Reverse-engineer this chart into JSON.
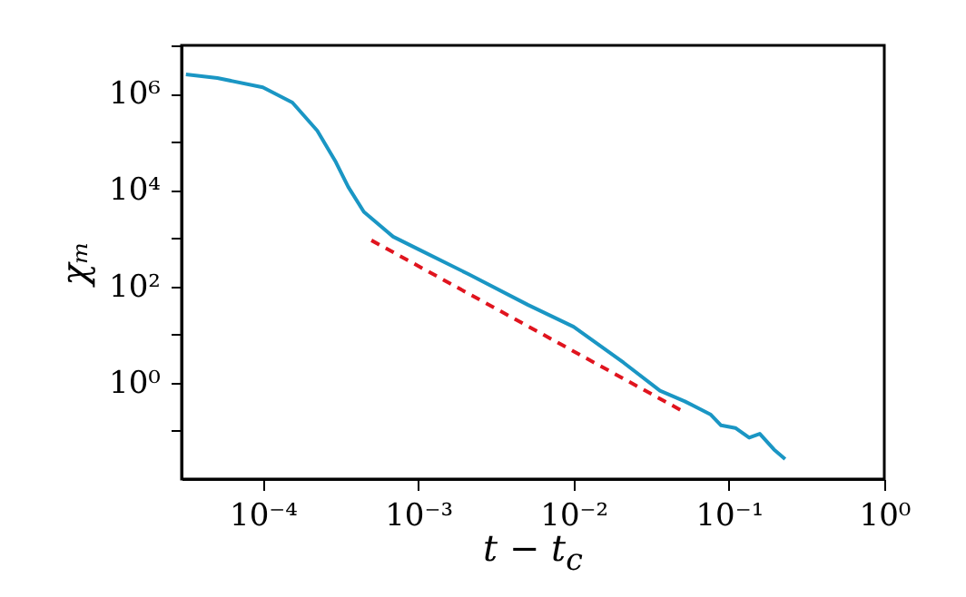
{
  "chart_data": {
    "type": "line",
    "xlabel": "t − t$_{c}$",
    "ylabel": "χₘ",
    "log": "xy",
    "grid": false,
    "xlim": [
      3e-05,
      1
    ],
    "ylim": [
      0.01,
      10000000.0
    ],
    "xticks": [
      {
        "value": 0.0001,
        "label": "10⁻⁴"
      },
      {
        "value": 0.001,
        "label": "10⁻³"
      },
      {
        "value": 0.01,
        "label": "10⁻²"
      },
      {
        "value": 0.1,
        "label": "10⁻¹"
      },
      {
        "value": 1,
        "label": "10⁰"
      }
    ],
    "yticks": [
      {
        "value": 0.1,
        "label": null
      },
      {
        "value": 1,
        "label": "10⁰"
      },
      {
        "value": 10,
        "label": null
      },
      {
        "value": 100,
        "label": "10²"
      },
      {
        "value": 1000,
        "label": null
      },
      {
        "value": 10000,
        "label": "10⁴"
      },
      {
        "value": 100000,
        "label": null
      },
      {
        "value": 1000000,
        "label": "10⁶"
      },
      {
        "value": 10000000,
        "label": null
      }
    ],
    "series": [
      {
        "color": "#1a96c4",
        "line_style": "solid",
        "x": [
          3.2e-05,
          5.1e-05,
          0.0001,
          0.000155,
          0.000224,
          0.000295,
          0.000355,
          0.000447,
          0.00069,
          0.001,
          0.0021,
          0.0051,
          0.01,
          0.021,
          0.036,
          0.052,
          0.076,
          0.089,
          0.11,
          0.135,
          0.158,
          0.195,
          0.23
        ],
        "values": [
          2500000.0,
          2100000.0,
          1350000.0,
          650000.0,
          170000.0,
          38000.0,
          11500.0,
          3500.0,
          1070.0,
          590,
          180,
          41,
          14.5,
          2.6,
          0.68,
          0.41,
          0.22,
          0.13,
          0.115,
          0.072,
          0.087,
          0.041,
          0.026
        ]
      },
      {
        "color": "#e0141e",
        "line_style": "dashed",
        "x": [
          0.0005,
          0.05
        ],
        "values": [
          900,
          0.26
        ]
      }
    ]
  }
}
